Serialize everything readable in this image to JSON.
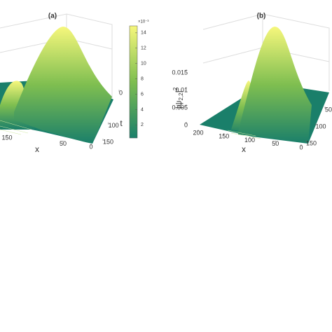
{
  "chart_data": [
    {
      "type": "surface",
      "title": "(a)",
      "xlabel": "x",
      "ylabel": "t",
      "xlim": [
        0,
        200
      ],
      "xticks": [
        150,
        50,
        0
      ],
      "ylim": [
        0,
        150
      ],
      "yticks": [
        0,
        100,
        150
      ],
      "clim": [
        0.3,
        14.9
      ],
      "cticks": [
        2,
        4,
        6,
        8,
        10,
        12,
        14
      ],
      "colorbar_exponent": "×10⁻³",
      "colors": [
        "#1a7f6a",
        "#7ebe50",
        "#f6f77c"
      ]
    },
    {
      "type": "surface",
      "title": "(b)",
      "xlabel": "x",
      "zlabel": {
        "open": "|ψ",
        "sub": "2,2",
        "close": "|",
        "sup": "2"
      },
      "xlim": [
        0,
        200
      ],
      "xticks": [
        200,
        150,
        100,
        50,
        0
      ],
      "ylim": [
        0,
        150
      ],
      "yticks": [
        50,
        100,
        150
      ],
      "zlim": [
        0,
        0.015
      ],
      "zticks": [
        0,
        0.005,
        0.01,
        0.015
      ],
      "colors": [
        "#1a7f6a",
        "#7ebe50",
        "#f6f77c"
      ]
    }
  ]
}
